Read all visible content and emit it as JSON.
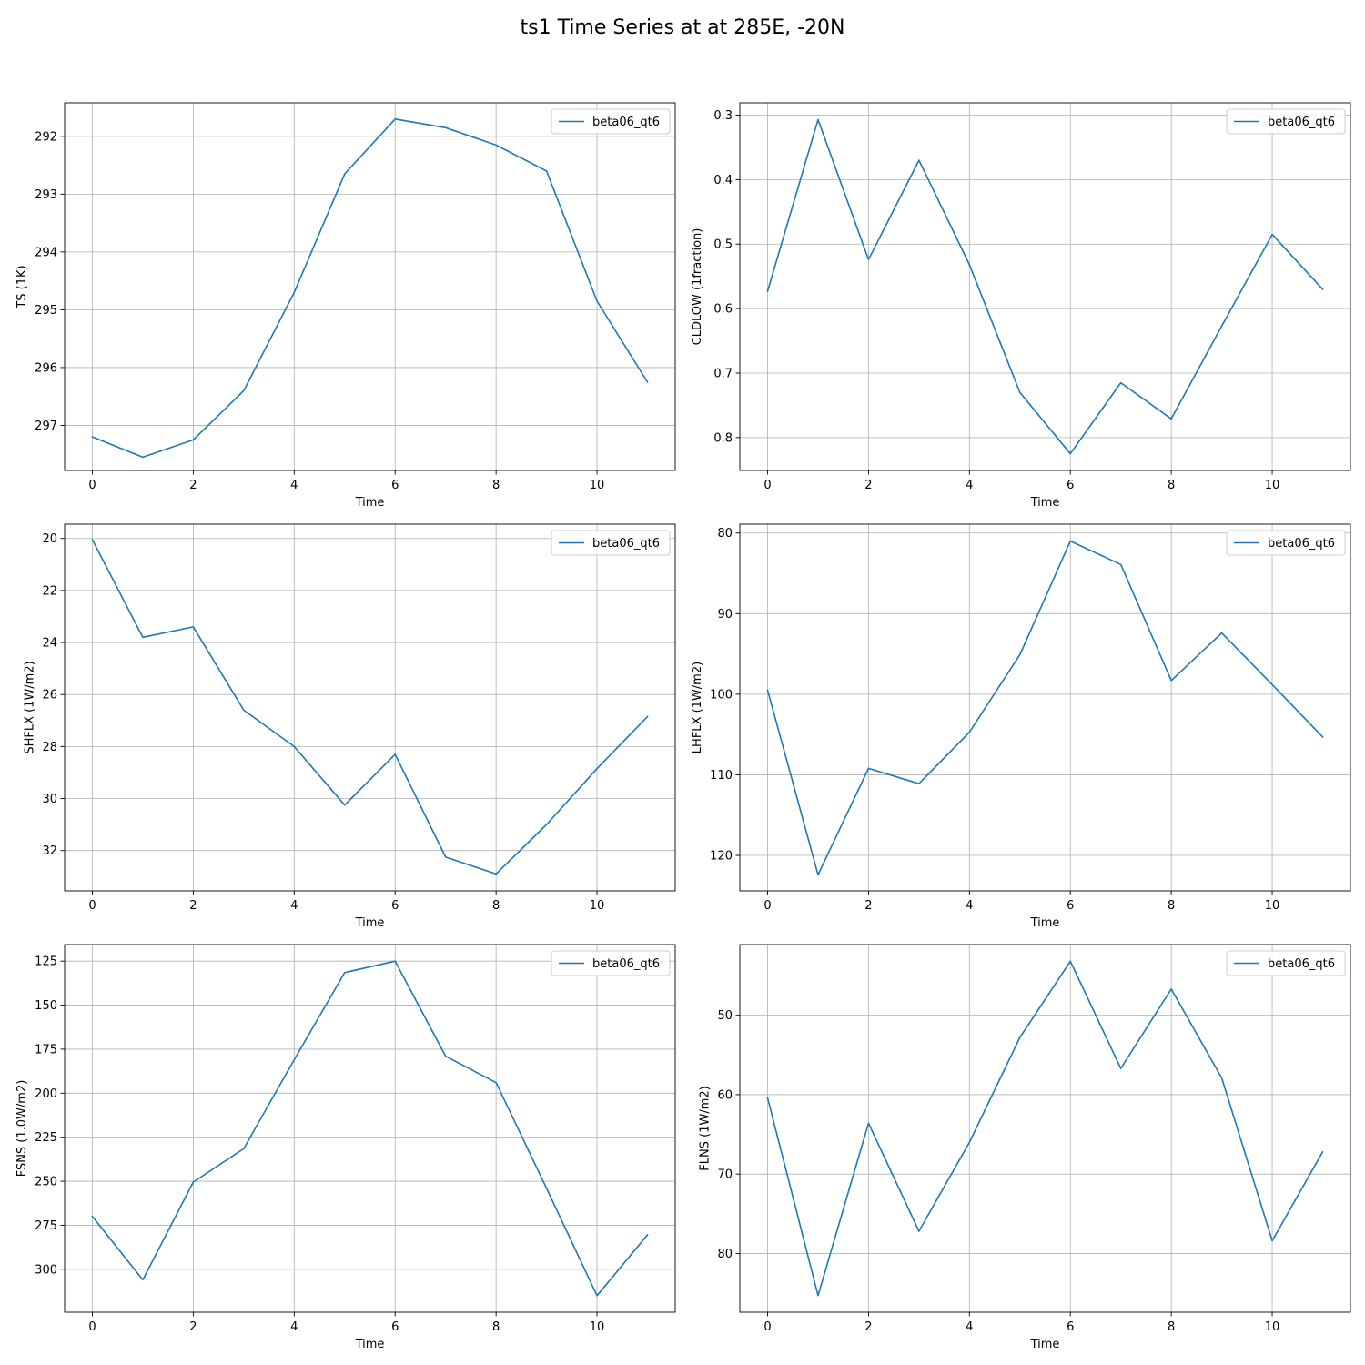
{
  "title": "ts1 Time Series at at 285E, -20N",
  "line_color": "#1f77b4",
  "chart_data": [
    {
      "type": "line",
      "xlabel": "Time",
      "ylabel": "TS (1K)",
      "y_inverted": true,
      "xlim": [
        -0.55,
        11.55
      ],
      "ylim": [
        297.78,
        291.42
      ],
      "xticks": [
        0,
        2,
        4,
        6,
        8,
        10
      ],
      "yticks": [
        292,
        293,
        294,
        295,
        296,
        297
      ],
      "grid": true,
      "legend_position": "upper right",
      "x": [
        0,
        1,
        2,
        3,
        4,
        5,
        6,
        7,
        8,
        9,
        10,
        11
      ],
      "series": [
        {
          "name": "beta06_qt6",
          "values": [
            297.2,
            297.55,
            297.25,
            296.4,
            294.7,
            292.65,
            291.7,
            291.85,
            292.15,
            292.6,
            294.85,
            296.25
          ]
        }
      ]
    },
    {
      "type": "line",
      "xlabel": "Time",
      "ylabel": "CLDLOW (1fraction)",
      "y_inverted": true,
      "xlim": [
        -0.55,
        11.55
      ],
      "ylim": [
        0.851,
        0.281
      ],
      "xticks": [
        0,
        2,
        4,
        6,
        8,
        10
      ],
      "yticks": [
        0.3,
        0.4,
        0.5,
        0.6,
        0.7,
        0.8
      ],
      "grid": true,
      "legend_position": "upper right",
      "x": [
        0,
        1,
        2,
        3,
        4,
        5,
        6,
        7,
        8,
        9,
        10,
        11
      ],
      "series": [
        {
          "name": "beta06_qt6",
          "values": [
            0.573,
            0.307,
            0.524,
            0.37,
            0.532,
            0.73,
            0.825,
            0.715,
            0.771,
            0.627,
            0.485,
            0.57
          ]
        }
      ]
    },
    {
      "type": "line",
      "xlabel": "Time",
      "ylabel": "SHFLX (1W/m2)",
      "y_inverted": true,
      "xlim": [
        -0.55,
        11.55
      ],
      "ylim": [
        33.55,
        19.45
      ],
      "xticks": [
        0,
        2,
        4,
        6,
        8,
        10
      ],
      "yticks": [
        20,
        22,
        24,
        26,
        28,
        30,
        32
      ],
      "grid": true,
      "legend_position": "upper right",
      "x": [
        0,
        1,
        2,
        3,
        4,
        5,
        6,
        7,
        8,
        9,
        10,
        11
      ],
      "series": [
        {
          "name": "beta06_qt6",
          "values": [
            20.05,
            23.8,
            23.4,
            26.6,
            28.0,
            30.25,
            28.3,
            32.25,
            32.9,
            31.0,
            28.85,
            26.85
          ]
        }
      ]
    },
    {
      "type": "line",
      "xlabel": "Time",
      "ylabel": "LHFLX (1W/m2)",
      "y_inverted": true,
      "xlim": [
        -0.55,
        11.55
      ],
      "ylim": [
        124.4,
        78.9
      ],
      "xticks": [
        0,
        2,
        4,
        6,
        8,
        10
      ],
      "yticks": [
        80,
        90,
        100,
        110,
        120
      ],
      "grid": true,
      "legend_position": "upper right",
      "x": [
        0,
        1,
        2,
        3,
        4,
        5,
        6,
        7,
        8,
        9,
        10,
        11
      ],
      "series": [
        {
          "name": "beta06_qt6",
          "values": [
            99.5,
            122.4,
            109.2,
            111.1,
            104.7,
            95.1,
            81.0,
            83.9,
            98.3,
            92.4,
            98.8,
            105.3
          ]
        }
      ]
    },
    {
      "type": "line",
      "xlabel": "Time",
      "ylabel": "FSNS (1.0W/m2)",
      "y_inverted": true,
      "xlim": [
        -0.55,
        11.55
      ],
      "ylim": [
        324.4,
        115.6
      ],
      "xticks": [
        0,
        2,
        4,
        6,
        8,
        10
      ],
      "yticks": [
        125,
        150,
        175,
        200,
        225,
        250,
        275,
        300
      ],
      "grid": true,
      "legend_position": "upper right",
      "x": [
        0,
        1,
        2,
        3,
        4,
        5,
        6,
        7,
        8,
        9,
        10,
        11
      ],
      "series": [
        {
          "name": "beta06_qt6",
          "values": [
            270.0,
            306.0,
            250.5,
            231.5,
            181.0,
            131.5,
            125.0,
            179.0,
            194.0,
            254.0,
            315.0,
            280.5
          ]
        }
      ]
    },
    {
      "type": "line",
      "xlabel": "Time",
      "ylabel": "FLNS (1W/m2)",
      "y_inverted": true,
      "xlim": [
        -0.55,
        11.55
      ],
      "ylim": [
        87.4,
        41.1
      ],
      "xticks": [
        0,
        2,
        4,
        6,
        8,
        10
      ],
      "yticks": [
        50,
        60,
        70,
        80
      ],
      "grid": true,
      "legend_position": "upper right",
      "x": [
        0,
        1,
        2,
        3,
        4,
        5,
        6,
        7,
        8,
        9,
        10,
        11
      ],
      "series": [
        {
          "name": "beta06_qt6",
          "values": [
            60.4,
            85.3,
            63.6,
            77.2,
            66.0,
            52.8,
            43.2,
            56.7,
            46.7,
            57.9,
            78.4,
            67.2
          ]
        }
      ]
    }
  ]
}
